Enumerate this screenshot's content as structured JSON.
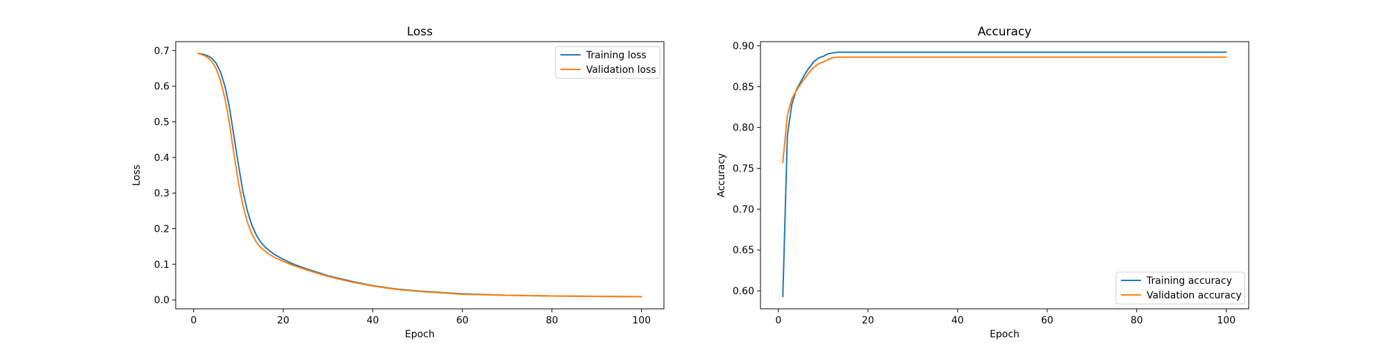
{
  "chart_data": [
    {
      "type": "line",
      "title": "Loss",
      "xlabel": "Epoch",
      "ylabel": "Loss",
      "xlim": [
        -4,
        105
      ],
      "ylim": [
        -0.025,
        0.725
      ],
      "x_ticks": [
        0,
        20,
        40,
        60,
        80,
        100
      ],
      "y_ticks": [
        0.0,
        0.1,
        0.2,
        0.3,
        0.4,
        0.5,
        0.6,
        0.7
      ],
      "legend": "top-right",
      "grid": false,
      "x": [
        1,
        2,
        3,
        4,
        5,
        6,
        7,
        8,
        9,
        10,
        11,
        12,
        13,
        14,
        15,
        16,
        17,
        18,
        20,
        22,
        25,
        30,
        35,
        40,
        45,
        50,
        60,
        70,
        80,
        90,
        100
      ],
      "series": [
        {
          "name": "Training loss",
          "color": "#1f77b4",
          "values": [
            0.692,
            0.69,
            0.686,
            0.679,
            0.665,
            0.64,
            0.6,
            0.54,
            0.46,
            0.38,
            0.305,
            0.25,
            0.21,
            0.182,
            0.162,
            0.148,
            0.137,
            0.128,
            0.114,
            0.102,
            0.088,
            0.068,
            0.053,
            0.04,
            0.031,
            0.025,
            0.017,
            0.013,
            0.011,
            0.01,
            0.009
          ]
        },
        {
          "name": "Validation loss",
          "color": "#ff7f0e",
          "values": [
            0.692,
            0.688,
            0.682,
            0.67,
            0.65,
            0.615,
            0.565,
            0.495,
            0.41,
            0.33,
            0.265,
            0.218,
            0.185,
            0.162,
            0.147,
            0.136,
            0.127,
            0.12,
            0.108,
            0.098,
            0.085,
            0.066,
            0.051,
            0.039,
            0.03,
            0.024,
            0.016,
            0.013,
            0.011,
            0.01,
            0.009
          ]
        }
      ]
    },
    {
      "type": "line",
      "title": "Accuracy",
      "xlabel": "Epoch",
      "ylabel": "Accuracy",
      "xlim": [
        -4,
        105
      ],
      "ylim": [
        0.578,
        0.905
      ],
      "x_ticks": [
        0,
        20,
        40,
        60,
        80,
        100
      ],
      "y_ticks": [
        0.6,
        0.65,
        0.7,
        0.75,
        0.8,
        0.85,
        0.9
      ],
      "legend": "bottom-right",
      "grid": false,
      "x": [
        1,
        2,
        3,
        4,
        5,
        6,
        7,
        8,
        9,
        10,
        11,
        12,
        13,
        14,
        15,
        20,
        30,
        40,
        50,
        60,
        70,
        80,
        90,
        100
      ],
      "series": [
        {
          "name": "Training accuracy",
          "color": "#1f77b4",
          "values": [
            0.593,
            0.79,
            0.828,
            0.846,
            0.856,
            0.866,
            0.874,
            0.881,
            0.885,
            0.887,
            0.89,
            0.891,
            0.892,
            0.892,
            0.892,
            0.892,
            0.892,
            0.892,
            0.892,
            0.892,
            0.892,
            0.892,
            0.892,
            0.892
          ]
        },
        {
          "name": "Validation accuracy",
          "color": "#ff7f0e",
          "values": [
            0.757,
            0.815,
            0.835,
            0.845,
            0.853,
            0.861,
            0.868,
            0.874,
            0.878,
            0.88,
            0.883,
            0.885,
            0.886,
            0.886,
            0.886,
            0.886,
            0.886,
            0.886,
            0.886,
            0.886,
            0.886,
            0.886,
            0.886,
            0.886
          ]
        }
      ]
    }
  ]
}
